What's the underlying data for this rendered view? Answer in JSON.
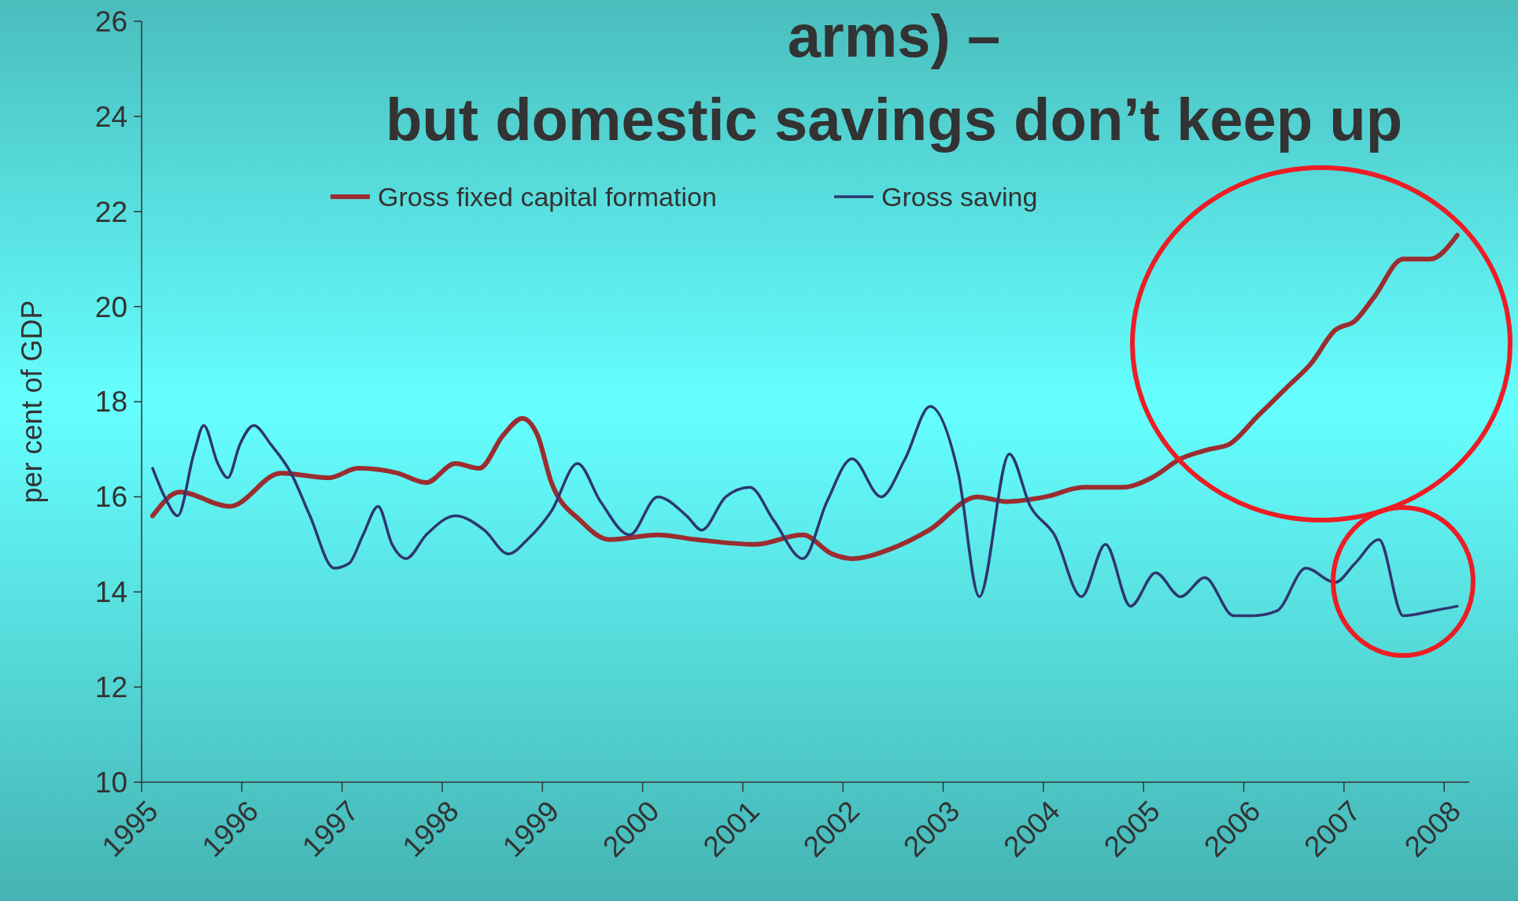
{
  "chart_data": {
    "type": "line",
    "title": "arms) –\nbut domestic savings don’t keep up",
    "ylabel": "per cent of GDP",
    "legend": "top",
    "grid": false,
    "xlim": [
      1995,
      2008.25
    ],
    "xticks": [
      1995,
      1996,
      1997,
      1998,
      1999,
      2000,
      2001,
      2002,
      2003,
      2004,
      2005,
      2006,
      2007,
      2008
    ],
    "ylim": [
      10,
      26
    ],
    "yticks": [
      10,
      12,
      14,
      16,
      18,
      20,
      22,
      24,
      26
    ],
    "series": [
      {
        "name": "Gross fixed capital formation",
        "color": "#9b2d30",
        "x": [
          1995.11,
          1995.38,
          1995.88,
          1996.39,
          1996.87,
          1997.16,
          1997.55,
          1997.84,
          1998.13,
          1998.37,
          1998.61,
          1998.8,
          1998.95,
          1999.09,
          1999.38,
          1999.67,
          2000.15,
          2000.54,
          2001.12,
          2001.6,
          2001.89,
          2002.09,
          2002.47,
          2002.86,
          2003.34,
          2003.63,
          2004.02,
          2004.4,
          2004.79,
          2005.08,
          2005.37,
          2005.66,
          2005.85,
          2006.14,
          2006.43,
          2006.67,
          2006.91,
          2007.11,
          2007.3,
          2007.59,
          2007.86,
          2008.13
        ],
        "values": [
          15.6,
          16.1,
          15.8,
          16.5,
          16.4,
          16.6,
          16.5,
          16.3,
          16.7,
          16.6,
          17.3,
          17.65,
          17.3,
          16.3,
          15.5,
          15.1,
          15.2,
          15.1,
          15.0,
          15.2,
          14.8,
          14.7,
          14.9,
          15.3,
          16.0,
          15.9,
          16.0,
          16.2,
          16.2,
          16.4,
          16.8,
          17.0,
          17.1,
          17.7,
          18.3,
          18.8,
          19.5,
          19.7,
          20.2,
          21.0,
          21.0,
          21.5
        ]
      },
      {
        "name": "Gross saving",
        "color": "#2e3670",
        "x": [
          1995.11,
          1995.23,
          1995.36,
          1995.52,
          1995.62,
          1995.76,
          1995.86,
          1995.98,
          1996.12,
          1996.29,
          1996.49,
          1996.68,
          1996.92,
          1997.07,
          1997.21,
          1997.36,
          1997.5,
          1997.64,
          1997.84,
          1998.13,
          1998.42,
          1998.66,
          1998.85,
          1999.09,
          1999.35,
          1999.58,
          1999.87,
          2000.15,
          2000.44,
          2000.59,
          2000.83,
          2001.07,
          2001.31,
          2001.6,
          2001.84,
          2002.09,
          2002.38,
          2002.62,
          2002.87,
          2003.15,
          2003.36,
          2003.66,
          2003.87,
          2004.11,
          2004.38,
          2004.62,
          2004.87,
          2005.12,
          2005.37,
          2005.61,
          2005.9,
          2006.09,
          2006.33,
          2006.62,
          2006.91,
          2007.11,
          2007.35,
          2007.59,
          2007.88,
          2008.13
        ],
        "values": [
          16.6,
          16.0,
          15.6,
          16.9,
          17.5,
          16.7,
          16.4,
          17.1,
          17.5,
          17.1,
          16.5,
          15.6,
          14.5,
          14.6,
          15.2,
          15.8,
          15.0,
          14.7,
          15.2,
          15.6,
          15.3,
          14.8,
          15.1,
          15.7,
          16.7,
          15.9,
          15.2,
          16.0,
          15.6,
          15.3,
          16.0,
          16.2,
          15.5,
          14.7,
          15.9,
          16.8,
          16.0,
          16.8,
          17.9,
          16.5,
          13.9,
          16.9,
          15.8,
          15.2,
          13.9,
          15.0,
          13.7,
          14.4,
          13.9,
          14.3,
          13.5,
          13.5,
          13.6,
          14.5,
          14.2,
          14.6,
          15.1,
          13.5,
          13.6,
          13.7
        ]
      }
    ]
  }
}
